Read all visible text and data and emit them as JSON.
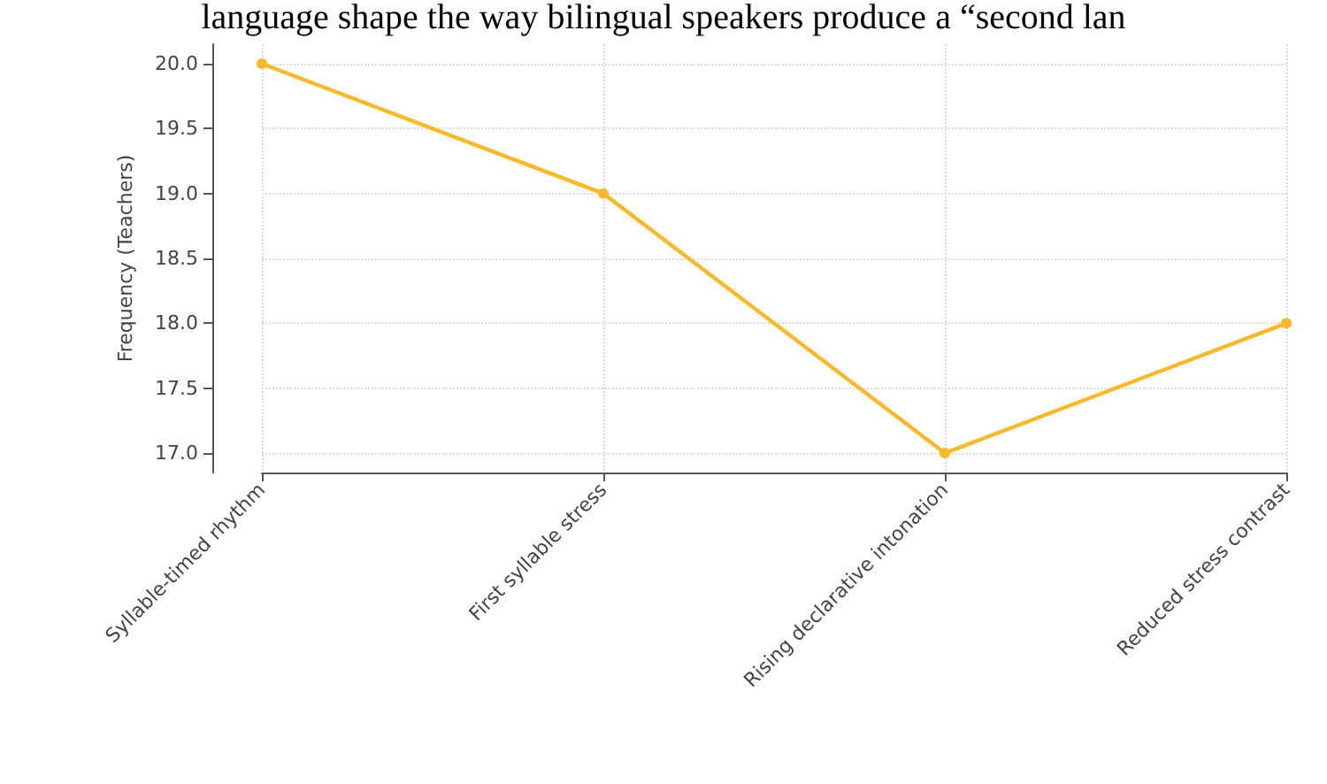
{
  "chart_data": {
    "type": "line",
    "ylabel": "Frequency (Teachers)",
    "annotations": [
      "language shape the way bilingual speakers produce a “second lan"
    ],
    "categories": [
      "Syllable-timed rhythm",
      "First syllable stress",
      "Rising declarative intonation",
      "Reduced stress contrast"
    ],
    "series": [
      {
        "color": "#fbb829",
        "values": [
          20,
          19,
          17,
          18
        ]
      }
    ],
    "ylim": [
      16.85,
      20.15
    ],
    "yticks": [
      {
        "value": 17,
        "label": "17.0"
      },
      {
        "value": 17.5,
        "label": "17.5"
      },
      {
        "value": 18,
        "label": "18.0"
      },
      {
        "value": 18.5,
        "label": "18.5"
      },
      {
        "value": 19,
        "label": "19.0"
      },
      {
        "value": 19.5,
        "label": "19.5"
      },
      {
        "value": 20,
        "label": "20.0"
      }
    ],
    "grid": true,
    "marker": "circle",
    "line_style": "solid"
  }
}
